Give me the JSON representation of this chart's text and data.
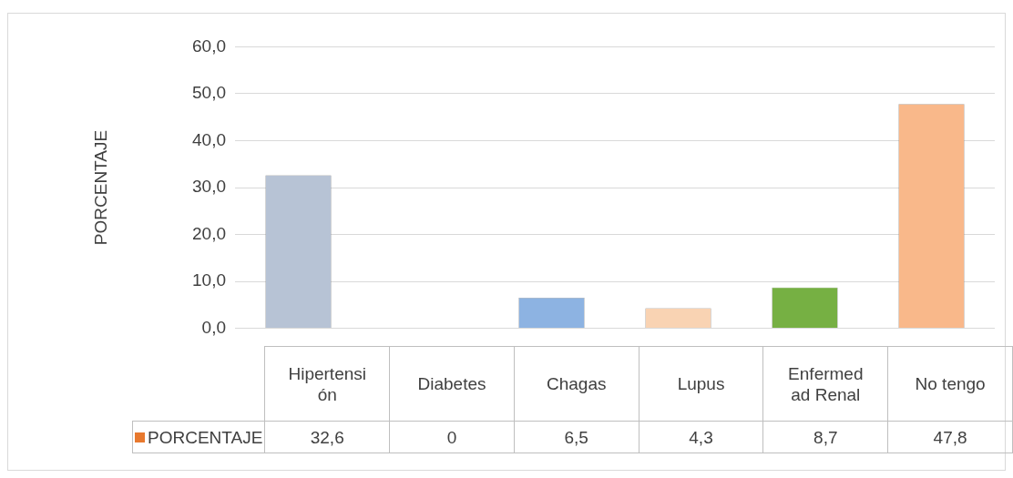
{
  "chart_data": {
    "type": "bar",
    "ylabel": "PORCENTAJE",
    "categories": [
      "Hipertensión",
      "Diabetes",
      "Chagas",
      "Lupus",
      "Enfermedad Renal",
      "No tengo"
    ],
    "series": [
      {
        "name": "PORCENTAJE",
        "color": "#e8792e",
        "colors": [
          "#b7c3d5",
          "#b7c3d5",
          "#8db3e2",
          "#f9d3b3",
          "#76b043",
          "#f9b88a"
        ],
        "values": [
          32.6,
          0,
          6.5,
          4.3,
          8.7,
          47.8
        ],
        "value_labels": [
          "32,6",
          "0",
          "6,5",
          "4,3",
          "8,7",
          "47,8"
        ]
      }
    ],
    "ylim": [
      0,
      60
    ],
    "yticks": [
      {
        "value": 0,
        "label": "0,0"
      },
      {
        "value": 10,
        "label": "10,0"
      },
      {
        "value": 20,
        "label": "20,0"
      },
      {
        "value": 30,
        "label": "30,0"
      },
      {
        "value": 40,
        "label": "40,0"
      },
      {
        "value": 50,
        "label": "50,0"
      },
      {
        "value": 60,
        "label": "60,0"
      }
    ],
    "grid": "y",
    "legend": "bottom"
  }
}
